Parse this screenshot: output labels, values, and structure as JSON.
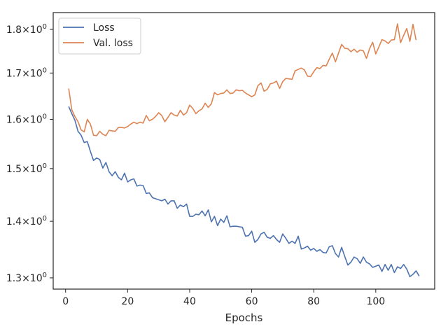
{
  "chart_data": {
    "type": "line",
    "xlabel": "Epochs",
    "ylabel": "",
    "title": "",
    "xlim": [
      -4,
      119
    ],
    "ylim": [
      1.281,
      1.84
    ],
    "yscale": "log",
    "grid": false,
    "legend_position": "upper left",
    "x_ticks": [
      0,
      20,
      40,
      60,
      80,
      100
    ],
    "x_tick_labels": [
      "0",
      "20",
      "40",
      "60",
      "80",
      "100"
    ],
    "y_ticks": [
      1.3,
      1.4,
      1.5,
      1.6,
      1.7,
      1.8
    ],
    "y_tick_mantissas": [
      "1.3",
      "1.4",
      "1.5",
      "1.6",
      "1.7",
      "1.8"
    ],
    "y_tick_multiplier": "10",
    "y_tick_exponent": "0",
    "series": [
      {
        "name": "Loss",
        "color": "#4c72b0",
        "x_start": 1,
        "values": [
          1.627,
          1.612,
          1.598,
          1.575,
          1.567,
          1.552,
          1.554,
          1.534,
          1.516,
          1.521,
          1.518,
          1.501,
          1.512,
          1.494,
          1.486,
          1.494,
          1.483,
          1.478,
          1.491,
          1.474,
          1.478,
          1.48,
          1.466,
          1.468,
          1.467,
          1.452,
          1.453,
          1.444,
          1.442,
          1.44,
          1.438,
          1.441,
          1.432,
          1.438,
          1.438,
          1.424,
          1.43,
          1.427,
          1.432,
          1.409,
          1.409,
          1.413,
          1.412,
          1.419,
          1.41,
          1.421,
          1.399,
          1.409,
          1.392,
          1.404,
          1.398,
          1.41,
          1.39,
          1.391,
          1.391,
          1.39,
          1.389,
          1.373,
          1.374,
          1.382,
          1.362,
          1.367,
          1.377,
          1.38,
          1.371,
          1.369,
          1.374,
          1.367,
          1.362,
          1.377,
          1.369,
          1.36,
          1.364,
          1.36,
          1.373,
          1.35,
          1.352,
          1.355,
          1.348,
          1.351,
          1.346,
          1.349,
          1.344,
          1.343,
          1.354,
          1.356,
          1.342,
          1.336,
          1.353,
          1.337,
          1.322,
          1.327,
          1.336,
          1.333,
          1.325,
          1.336,
          1.327,
          1.324,
          1.318,
          1.32,
          1.322,
          1.311,
          1.323,
          1.313,
          1.323,
          1.309,
          1.319,
          1.316,
          1.323,
          1.315,
          1.302,
          1.306,
          1.312,
          1.303
        ]
      },
      {
        "name": "Val. loss",
        "color": "#dd8452",
        "x_start": 1,
        "values": [
          1.666,
          1.62,
          1.606,
          1.595,
          1.578,
          1.574,
          1.6,
          1.59,
          1.567,
          1.566,
          1.575,
          1.569,
          1.566,
          1.577,
          1.576,
          1.575,
          1.583,
          1.583,
          1.582,
          1.585,
          1.59,
          1.594,
          1.591,
          1.594,
          1.592,
          1.608,
          1.597,
          1.6,
          1.606,
          1.614,
          1.608,
          1.595,
          1.604,
          1.614,
          1.609,
          1.607,
          1.619,
          1.609,
          1.614,
          1.63,
          1.623,
          1.612,
          1.618,
          1.622,
          1.634,
          1.625,
          1.633,
          1.657,
          1.652,
          1.655,
          1.656,
          1.663,
          1.655,
          1.656,
          1.663,
          1.661,
          1.662,
          1.656,
          1.652,
          1.648,
          1.652,
          1.672,
          1.678,
          1.66,
          1.664,
          1.676,
          1.678,
          1.682,
          1.666,
          1.681,
          1.688,
          1.687,
          1.686,
          1.705,
          1.708,
          1.711,
          1.707,
          1.693,
          1.692,
          1.703,
          1.712,
          1.71,
          1.717,
          1.716,
          1.731,
          1.745,
          1.725,
          1.745,
          1.765,
          1.756,
          1.755,
          1.748,
          1.754,
          1.747,
          1.752,
          1.75,
          1.733,
          1.755,
          1.77,
          1.743,
          1.759,
          1.776,
          1.773,
          1.767,
          1.775,
          1.776,
          1.813,
          1.769,
          1.786,
          1.802,
          1.772,
          1.812,
          1.775
        ]
      }
    ]
  }
}
